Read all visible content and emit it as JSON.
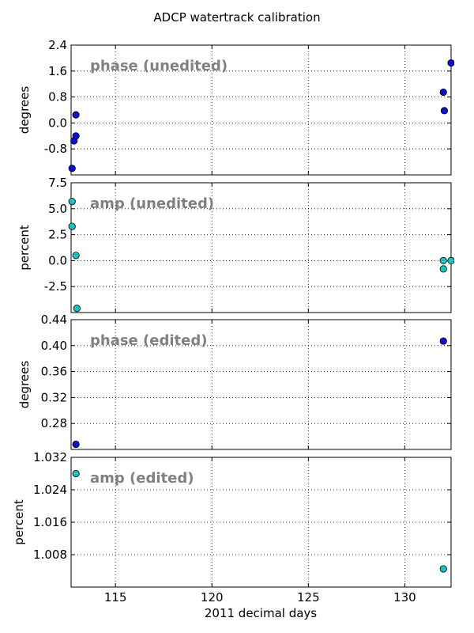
{
  "chart_data": {
    "title": "ADCP watertrack calibration",
    "xlabel": "2011 decimal days",
    "xlim": [
      112.7,
      132.4
    ],
    "xticks": [
      115,
      120,
      125,
      130
    ],
    "panels": [
      {
        "type": "scatter",
        "label": "phase (unedited)",
        "ylabel": "degrees",
        "ylim": [
          -1.6,
          2.4
        ],
        "yticks": [
          -0.8,
          0.0,
          0.8,
          1.6,
          2.4
        ],
        "color": "#1010cc",
        "x": [
          112.75,
          112.85,
          112.95,
          112.95,
          132.0,
          132.05,
          132.4
        ],
        "y": [
          -1.4,
          -0.55,
          -0.4,
          0.25,
          0.95,
          0.38,
          1.85
        ]
      },
      {
        "type": "scatter",
        "label": "amp (unedited)",
        "ylabel": "percent",
        "ylim": [
          -5.0,
          7.5
        ],
        "yticks": [
          -2.5,
          0.0,
          2.5,
          5.0,
          7.5
        ],
        "color": "#20c0c0",
        "x": [
          112.75,
          112.75,
          112.95,
          113.0,
          132.0,
          132.0,
          132.4
        ],
        "y": [
          5.7,
          3.3,
          0.5,
          -4.6,
          0.0,
          -0.8,
          0.0
        ]
      },
      {
        "type": "scatter",
        "label": "phase (edited)",
        "ylabel": "degrees",
        "ylim": [
          0.24,
          0.44
        ],
        "yticks": [
          0.28,
          0.32,
          0.36,
          0.4,
          0.44
        ],
        "color": "#1010cc",
        "x": [
          112.95,
          132.0
        ],
        "y": [
          0.248,
          0.407
        ]
      },
      {
        "type": "scatter",
        "label": "amp (edited)",
        "ylabel": "percent",
        "ylim": [
          1.0,
          1.032
        ],
        "yticks": [
          1.008,
          1.016,
          1.024,
          1.032
        ],
        "color": "#20c0c0",
        "x": [
          112.95,
          132.0
        ],
        "y": [
          1.028,
          1.0045
        ]
      }
    ]
  }
}
